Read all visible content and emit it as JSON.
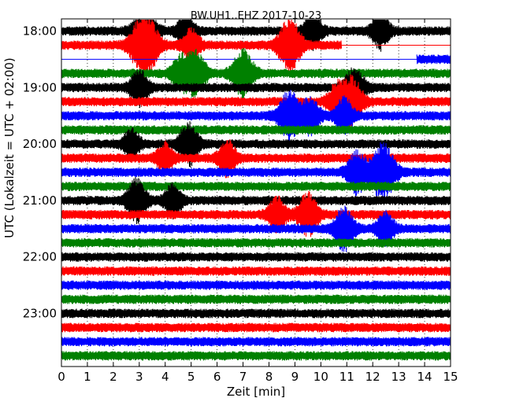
{
  "chart_data": {
    "type": "line",
    "title": "BW.UH1..EHZ 2017-10-23",
    "xlabel": "Zeit  [min]",
    "ylabel": "UTC (Lokalzeit = UTC + 02:00)",
    "xlim": [
      0,
      15
    ],
    "x_ticks": [
      0,
      1,
      2,
      3,
      4,
      5,
      6,
      7,
      8,
      9,
      10,
      11,
      12,
      13,
      14,
      15
    ],
    "y_tick_labels": [
      "18:00",
      "19:00",
      "20:00",
      "21:00",
      "22:00",
      "23:00"
    ],
    "grid": "vertical dotted",
    "series": [
      {
        "start": "18:00",
        "color": "#000000",
        "end_min": 15,
        "events": [
          [
            3.2,
            2.0
          ],
          [
            4.8,
            1.3
          ],
          [
            9.7,
            1.3
          ],
          [
            12.3,
            1.3
          ]
        ]
      },
      {
        "start": "18:15",
        "color": "#ff0000",
        "end_min": 10.8,
        "events": [
          [
            3.2,
            2.6
          ],
          [
            8.8,
            2.0
          ],
          [
            5.0,
            1.2
          ]
        ]
      },
      {
        "start": "18:30",
        "color": "#0000ff",
        "start_min": 13.7,
        "events": []
      },
      {
        "start": "18:45",
        "color": "#008000",
        "events": [
          [
            5.2,
            1.6
          ],
          [
            7.0,
            1.8
          ],
          [
            4.6,
            1.3
          ]
        ]
      },
      {
        "start": "19:00",
        "color": "#000000",
        "events": [
          [
            3.0,
            1.3
          ],
          [
            11.3,
            1.6
          ]
        ]
      },
      {
        "start": "19:15",
        "color": "#ff0000",
        "events": [
          [
            11.2,
            1.8
          ],
          [
            10.6,
            1.3
          ]
        ]
      },
      {
        "start": "19:30",
        "color": "#0000ff",
        "events": [
          [
            8.8,
            1.9
          ],
          [
            9.6,
            1.3
          ],
          [
            10.9,
            1.3
          ]
        ]
      },
      {
        "start": "19:45",
        "color": "#008000",
        "events": []
      },
      {
        "start": "20:00",
        "color": "#000000",
        "events": [
          [
            4.9,
            1.6
          ],
          [
            2.7,
            1.1
          ]
        ]
      },
      {
        "start": "20:15",
        "color": "#ff0000",
        "events": [
          [
            6.4,
            1.3
          ],
          [
            4.0,
            1.1
          ]
        ]
      },
      {
        "start": "20:30",
        "color": "#0000ff",
        "events": [
          [
            12.4,
            2.2
          ],
          [
            11.4,
            1.6
          ]
        ]
      },
      {
        "start": "20:45",
        "color": "#008000",
        "events": []
      },
      {
        "start": "21:00",
        "color": "#000000",
        "events": [
          [
            2.9,
            1.6
          ],
          [
            4.3,
            1.2
          ]
        ]
      },
      {
        "start": "21:15",
        "color": "#ff0000",
        "events": [
          [
            9.5,
            1.6
          ],
          [
            8.3,
            1.3
          ]
        ]
      },
      {
        "start": "21:30",
        "color": "#0000ff",
        "events": [
          [
            10.9,
            1.6
          ],
          [
            12.5,
            1.2
          ]
        ]
      },
      {
        "start": "21:45",
        "color": "#008000",
        "events": []
      },
      {
        "start": "22:00",
        "color": "#000000",
        "events": []
      },
      {
        "start": "22:15",
        "color": "#ff0000",
        "events": []
      },
      {
        "start": "22:30",
        "color": "#0000ff",
        "events": []
      },
      {
        "start": "22:45",
        "color": "#008000",
        "events": []
      },
      {
        "start": "23:00",
        "color": "#000000",
        "events": []
      },
      {
        "start": "23:15",
        "color": "#ff0000",
        "events": []
      },
      {
        "start": "23:30",
        "color": "#0000ff",
        "events": []
      },
      {
        "start": "23:45",
        "color": "#008000",
        "events": []
      }
    ]
  }
}
